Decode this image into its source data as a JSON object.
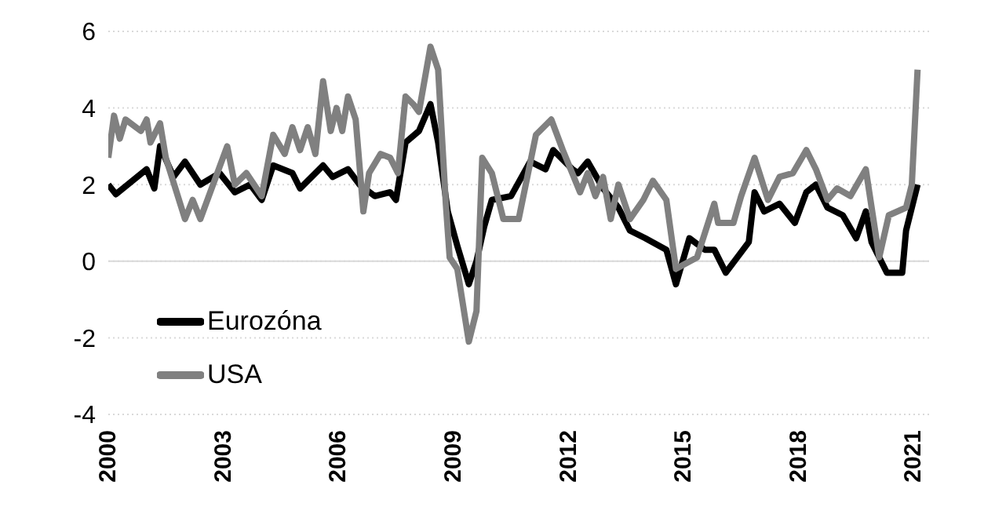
{
  "chart_data": {
    "type": "line",
    "xlim": [
      2000,
      2021.4
    ],
    "xticks": [
      2000,
      2003,
      2006,
      2009,
      2012,
      2015,
      2018,
      2021
    ],
    "ylim": [
      -4,
      6
    ],
    "yticks": [
      -4,
      -2,
      0,
      2,
      4,
      6
    ],
    "grid": "y",
    "legend": "bottom left",
    "marker": "none",
    "line_style": "solid",
    "ref_lines": [
      {
        "axis": "y",
        "value": 0,
        "color": "#d9d9d9"
      }
    ],
    "series": [
      {
        "name": "Eurozóna",
        "color": "#000000",
        "x": [
          2000.0,
          2000.2,
          2001.0,
          2001.2,
          2001.35,
          2001.7,
          2002.0,
          2002.4,
          2002.9,
          2003.3,
          2003.7,
          2004.0,
          2004.3,
          2004.8,
          2005.0,
          2005.6,
          2005.85,
          2006.25,
          2006.55,
          2006.95,
          2007.35,
          2007.5,
          2007.75,
          2008.1,
          2008.4,
          2008.6,
          2008.85,
          2009.1,
          2009.4,
          2009.6,
          2009.8,
          2010.0,
          2010.5,
          2011.0,
          2011.4,
          2011.6,
          2012.1,
          2012.25,
          2012.5,
          2012.9,
          2013.3,
          2013.6,
          2014.0,
          2014.55,
          2014.8,
          2015.15,
          2015.55,
          2015.8,
          2016.1,
          2016.7,
          2016.85,
          2017.1,
          2017.5,
          2017.9,
          2018.2,
          2018.45,
          2018.75,
          2019.15,
          2019.5,
          2019.75,
          2019.9,
          2020.3,
          2020.7,
          2020.8,
          2021.1
        ],
        "values": [
          2.0,
          1.75,
          2.4,
          1.9,
          3.0,
          2.2,
          2.6,
          2.0,
          2.3,
          1.8,
          2.0,
          1.6,
          2.5,
          2.3,
          1.9,
          2.5,
          2.2,
          2.4,
          2.0,
          1.7,
          1.8,
          1.6,
          3.1,
          3.4,
          4.1,
          3.1,
          1.3,
          0.4,
          -0.6,
          0.0,
          0.9,
          1.6,
          1.7,
          2.6,
          2.4,
          2.9,
          2.4,
          2.3,
          2.6,
          1.9,
          1.4,
          0.8,
          0.6,
          0.3,
          -0.6,
          0.6,
          0.3,
          0.3,
          -0.3,
          0.5,
          1.8,
          1.3,
          1.5,
          1.0,
          1.8,
          2.0,
          1.4,
          1.2,
          0.6,
          1.3,
          0.5,
          -0.3,
          -0.3,
          0.8,
          2.0
        ]
      },
      {
        "name": "USA",
        "color": "#808080",
        "x": [
          2000.0,
          2000.15,
          2000.3,
          2000.45,
          2000.85,
          2001.0,
          2001.1,
          2001.35,
          2001.5,
          2002.0,
          2002.2,
          2002.4,
          2003.1,
          2003.3,
          2003.6,
          2004.0,
          2004.3,
          2004.6,
          2004.8,
          2005.0,
          2005.2,
          2005.4,
          2005.6,
          2005.8,
          2005.95,
          2006.1,
          2006.25,
          2006.45,
          2006.65,
          2006.8,
          2007.1,
          2007.35,
          2007.55,
          2007.75,
          2007.95,
          2008.1,
          2008.4,
          2008.6,
          2008.8,
          2008.9,
          2009.1,
          2009.4,
          2009.6,
          2009.75,
          2010.0,
          2010.3,
          2010.7,
          2011.15,
          2011.55,
          2011.85,
          2012.3,
          2012.5,
          2012.7,
          2012.9,
          2013.1,
          2013.3,
          2013.6,
          2013.95,
          2014.2,
          2014.55,
          2014.8,
          2015.35,
          2015.8,
          2015.9,
          2016.3,
          2016.5,
          2016.85,
          2017.2,
          2017.5,
          2017.85,
          2018.2,
          2018.45,
          2018.75,
          2019.0,
          2019.35,
          2019.75,
          2020.1,
          2020.35,
          2020.8,
          2020.95,
          2021.1
        ],
        "values": [
          2.7,
          3.8,
          3.2,
          3.7,
          3.4,
          3.7,
          3.1,
          3.6,
          2.7,
          1.1,
          1.6,
          1.1,
          3.0,
          2.0,
          2.3,
          1.7,
          3.3,
          2.8,
          3.5,
          2.9,
          3.5,
          2.8,
          4.7,
          3.4,
          4.0,
          3.4,
          4.3,
          3.7,
          1.3,
          2.3,
          2.8,
          2.7,
          2.3,
          4.3,
          4.1,
          3.9,
          5.6,
          5.0,
          1.5,
          0.1,
          -0.2,
          -2.1,
          -1.3,
          2.7,
          2.3,
          1.1,
          1.1,
          3.3,
          3.7,
          2.9,
          1.8,
          2.3,
          1.7,
          2.2,
          1.1,
          2.0,
          1.1,
          1.6,
          2.1,
          1.6,
          -0.2,
          0.1,
          1.5,
          1.0,
          1.0,
          1.7,
          2.7,
          1.6,
          2.2,
          2.3,
          2.9,
          2.4,
          1.6,
          1.9,
          1.7,
          2.4,
          0.1,
          1.2,
          1.4,
          2.0,
          5.0
        ]
      }
    ]
  }
}
